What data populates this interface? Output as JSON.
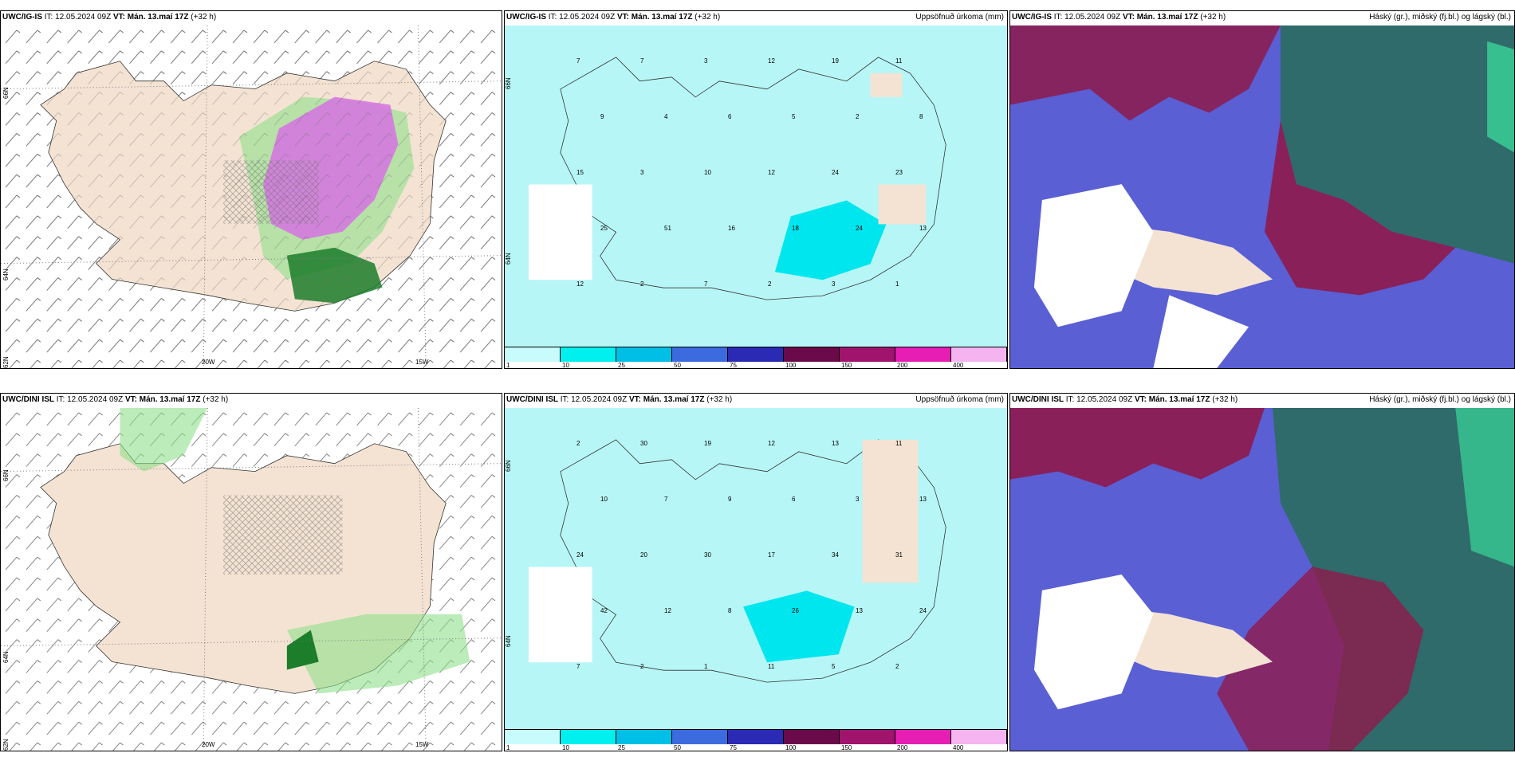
{
  "panels": [
    {
      "model": "UWC/IG-IS",
      "it_label": "IT:",
      "it": "12.05.2024 09Z",
      "vt_label": "VT:",
      "vt": "Mán. 13.maí 17Z",
      "lead": "(+32 h)",
      "title": ""
    },
    {
      "model": "UWC/IG-IS",
      "it_label": "IT:",
      "it": "12.05.2024 09Z",
      "vt_label": "VT:",
      "vt": "Mán. 13.maí 17Z",
      "lead": "(+32 h)",
      "title": "Uppsöfnuð úrkoma (mm)"
    },
    {
      "model": "UWC/IG-IS",
      "it_label": "IT:",
      "it": "12.05.2024 09Z",
      "vt_label": "VT:",
      "vt": "Mán. 13.maí 17Z",
      "lead": "(+32 h)",
      "title": "Háský (gr.), miðský (fj.bl.) og lágský (bl.)"
    },
    {
      "model": "UWC/DINI ISL",
      "it_label": "IT:",
      "it": "12.05.2024 09Z",
      "vt_label": "VT:",
      "vt": "Mán. 13.maí 17Z",
      "lead": "(+32 h)",
      "title": ""
    },
    {
      "model": "UWC/DINI ISL",
      "it_label": "IT:",
      "it": "12.05.2024 09Z",
      "vt_label": "VT:",
      "vt": "Mán. 13.maí 17Z",
      "lead": "(+32 h)",
      "title": "Uppsöfnuð úrkoma (mm)"
    },
    {
      "model": "UWC/DINI ISL",
      "it_label": "IT:",
      "it": "12.05.2024 09Z",
      "vt_label": "VT:",
      "vt": "Mán. 13.maí 17Z",
      "lead": "(+32 h)",
      "title": "Háský (gr.), miðský (fj.bl.) og lágský (bl.)"
    }
  ],
  "grid_labels": {
    "lat_66": "66N",
    "lat_64": "64N",
    "lat_62": "62N",
    "lon_20": "20W",
    "lon_15": "15W"
  },
  "colorbar": {
    "ticks": [
      "1",
      "10",
      "25",
      "50",
      "75",
      "100",
      "150",
      "200",
      "400"
    ],
    "colors": [
      "#c8fbfb",
      "#00f0f0",
      "#00bfe6",
      "#3c6be0",
      "#2a2ab4",
      "#6a0a4a",
      "#a0146e",
      "#e61eb4",
      "#f5b4f0"
    ]
  },
  "precip_samples": [
    {
      "panel": 1,
      "vals": [
        "7",
        "7",
        "3",
        "12",
        "19",
        "11",
        "9",
        "4",
        "6",
        "5",
        "2",
        "8",
        "15",
        "3",
        "10",
        "12",
        "24",
        "23",
        "25",
        "51",
        "16",
        "18",
        "24",
        "13",
        "12",
        "2",
        "7",
        "2",
        "3",
        "1"
      ]
    },
    {
      "panel": 4,
      "vals": [
        "2",
        "30",
        "19",
        "12",
        "13",
        "11",
        "10",
        "7",
        "9",
        "6",
        "3",
        "13",
        "24",
        "20",
        "30",
        "17",
        "34",
        "31",
        "42",
        "12",
        "8",
        "26",
        "13",
        "24",
        "7",
        "2",
        "1",
        "11",
        "5",
        "2"
      ]
    }
  ],
  "colors": {
    "land": "#f4e3d3",
    "green": "#8ee08a",
    "dkgreen": "#1c7d2a",
    "magenta": "#d672e3",
    "cyanlight": "#b7f6f6",
    "cloud_blue": "#5a5fd4",
    "cloud_maroon": "#8e1a4b",
    "cloud_teal": "#2f6b6a",
    "cloud_mint": "#39d59a"
  }
}
